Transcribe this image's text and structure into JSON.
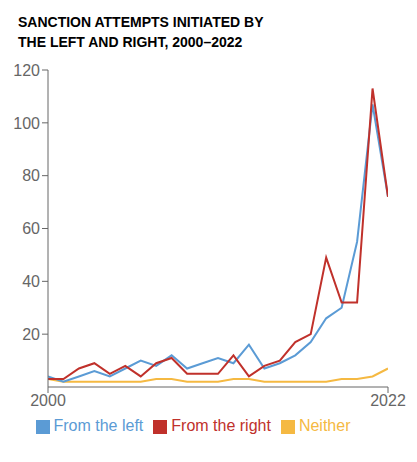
{
  "chart_data": {
    "type": "line",
    "title": "SANCTION ATTEMPTS INITIATED BY\nTHE LEFT AND RIGHT, 2000–2022",
    "x": [
      2000,
      2001,
      2002,
      2003,
      2004,
      2005,
      2006,
      2007,
      2008,
      2009,
      2010,
      2011,
      2012,
      2013,
      2014,
      2015,
      2016,
      2017,
      2018,
      2019,
      2020,
      2021,
      2022
    ],
    "series": [
      {
        "name": "Neither",
        "color": "#F5B942",
        "values": [
          3,
          2,
          2,
          2,
          2,
          2,
          2,
          3,
          3,
          2,
          2,
          2,
          3,
          3,
          2,
          2,
          2,
          2,
          2,
          3,
          3,
          4,
          7
        ]
      },
      {
        "name": "From the left",
        "color": "#5B9BD5",
        "values": [
          4,
          2,
          4,
          6,
          4,
          7,
          10,
          8,
          12,
          7,
          9,
          11,
          9,
          16,
          7,
          9,
          12,
          17,
          26,
          30,
          55,
          107,
          72
        ]
      },
      {
        "name": "From the right",
        "color": "#C0312B",
        "values": [
          3,
          3,
          7,
          9,
          5,
          8,
          4,
          9,
          11,
          5,
          5,
          5,
          12,
          4,
          8,
          10,
          17,
          20,
          49,
          32,
          32,
          113,
          72
        ]
      }
    ],
    "xlim": [
      2000,
      2022
    ],
    "xticks": [
      2000,
      2022
    ],
    "ylim": [
      0,
      120
    ],
    "yticks": [
      20,
      40,
      60,
      80,
      100,
      120
    ],
    "grid": false,
    "legend": "bottom"
  }
}
